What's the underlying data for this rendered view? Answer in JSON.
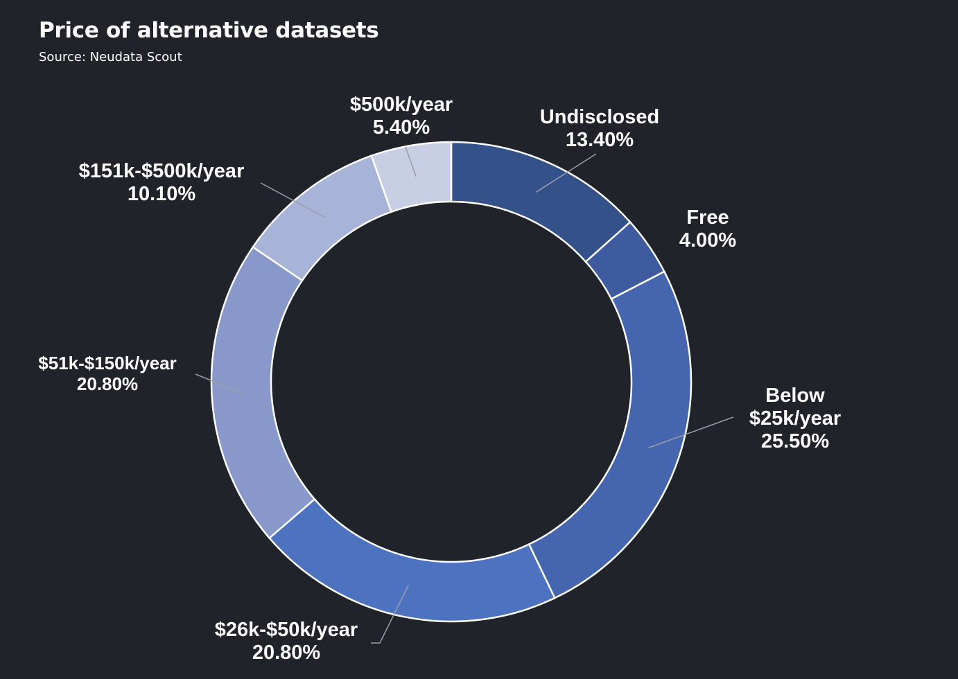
{
  "title": "Price of alternative datasets",
  "subtitle": "Source: Neudata Scout",
  "chart_data": {
    "type": "pie",
    "variant": "donut",
    "title": "Price of alternative datasets",
    "subtitle": "Source: Neudata Scout",
    "slices": [
      {
        "label_lines": [
          "Undisclosed"
        ],
        "value": 13.4,
        "value_label": "13.40%",
        "color": "#34518a"
      },
      {
        "label_lines": [
          "Free"
        ],
        "value": 4.0,
        "value_label": "4.00%",
        "color": "#3d5b9e"
      },
      {
        "label_lines": [
          "Below",
          "$25k/year"
        ],
        "value": 25.5,
        "value_label": "25.50%",
        "color": "#4566ae"
      },
      {
        "label_lines": [
          "$26k-$50k/year"
        ],
        "value": 20.8,
        "value_label": "20.80%",
        "color": "#4d72bf"
      },
      {
        "label_lines": [
          "$51k-$150k/year"
        ],
        "value": 20.8,
        "value_label": "20.80%",
        "color": "#8898ca"
      },
      {
        "label_lines": [
          "$151k-$500k/year"
        ],
        "value": 10.1,
        "value_label": "10.10%",
        "color": "#a8b3d8"
      },
      {
        "label_lines": [
          "$500k/year"
        ],
        "value": 5.4,
        "value_label": "5.40%",
        "color": "#c8cee4"
      }
    ],
    "legend": "none",
    "colors": {
      "background": "#21232a",
      "text": "#ffffff",
      "leader_line": "#9a9ea8",
      "slice_border": "#ffffff"
    }
  }
}
